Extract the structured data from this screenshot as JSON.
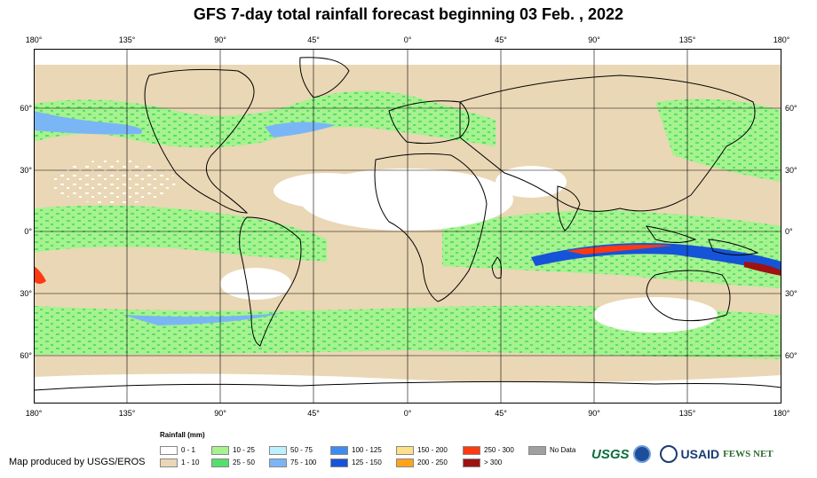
{
  "title": "GFS 7-day total rainfall forecast beginning 03 Feb. , 2022",
  "longitude_labels": [
    "180°",
    "135°",
    "90°",
    "45°",
    "0°",
    "45°",
    "90°",
    "135°",
    "180°"
  ],
  "latitude_labels": [
    "60°",
    "30°",
    "0°",
    "30°",
    "60°"
  ],
  "legend": {
    "title": "Rainfall (mm)",
    "items": [
      {
        "label": "0 - 1",
        "color": "#ffffff"
      },
      {
        "label": "1 - 10",
        "color": "#ead7b5"
      },
      {
        "label": "10 - 25",
        "color": "#a6f28f"
      },
      {
        "label": "25 - 50",
        "color": "#55e06b"
      },
      {
        "label": "50 - 75",
        "color": "#bff0ff"
      },
      {
        "label": "75 - 100",
        "color": "#7ab6f5"
      },
      {
        "label": "100 - 125",
        "color": "#3c8ded"
      },
      {
        "label": "125 - 150",
        "color": "#1554d8"
      },
      {
        "label": "150 - 200",
        "color": "#ffe08a"
      },
      {
        "label": "200 - 250",
        "color": "#ffa31a"
      },
      {
        "label": "250 - 300",
        "color": "#ff3a10"
      },
      {
        "label": "> 300",
        "color": "#a01212"
      },
      {
        "label": "No Data",
        "color": "#a0a0a0"
      }
    ]
  },
  "credit": "Map produced by USGS/EROS",
  "logos": {
    "usgs": "USGS",
    "usaid": "USAID",
    "fews": "FEWS NET"
  }
}
